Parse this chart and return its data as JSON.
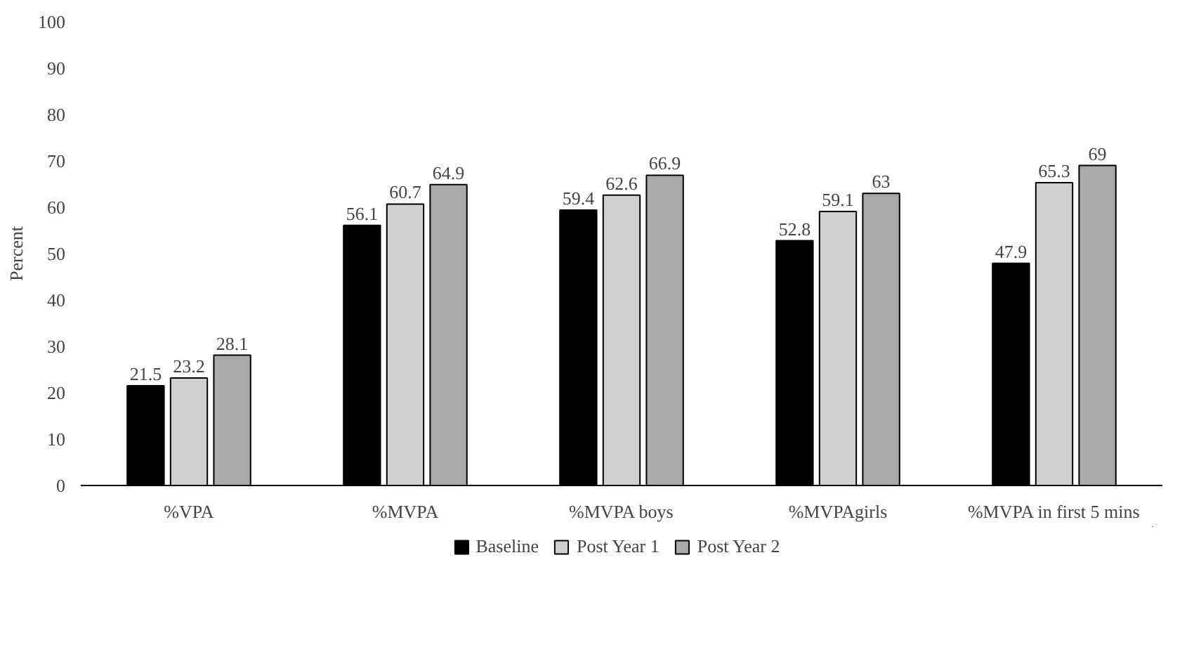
{
  "chart_data": {
    "type": "bar",
    "ylabel": "Percent",
    "categories": [
      "%VPA",
      "%MVPA",
      "%MVPA boys",
      "%MVPAgirls",
      "%MVPA in first 5 mins"
    ],
    "series": [
      {
        "name": "Baseline",
        "color": "#000000",
        "values": [
          21.5,
          56.1,
          59.4,
          52.8,
          47.9
        ]
      },
      {
        "name": "Post Year 1",
        "color": "#d0d0d0",
        "values": [
          23.2,
          60.7,
          62.6,
          59.1,
          65.3
        ]
      },
      {
        "name": "Post Year 2",
        "color": "#a9a9a9",
        "values": [
          28.1,
          64.9,
          66.9,
          63,
          69
        ]
      }
    ],
    "ylim": [
      0,
      100
    ],
    "yticks": [
      0,
      10,
      20,
      30,
      40,
      50,
      60,
      70,
      80,
      90,
      100
    ],
    "data_labels": true,
    "grid": false,
    "legend": "bottom"
  }
}
